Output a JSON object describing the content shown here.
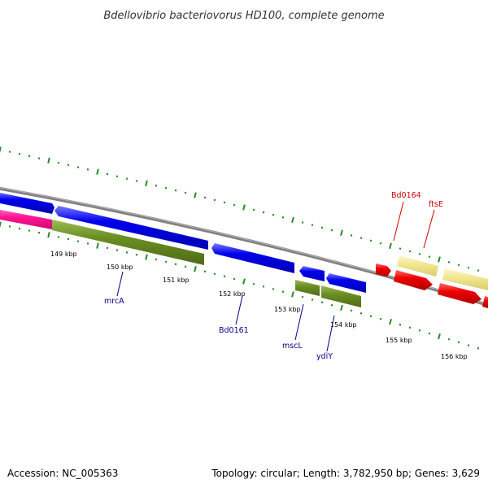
{
  "title": "Bdellovibrio bacteriovorus HD100, complete genome",
  "footer": {
    "accession": "Accession: NC_005363",
    "summary": "Topology: circular; Length: 3,782,950 bp; Genes: 3,629"
  },
  "colors": {
    "forward_cds": "#0000ee",
    "gc_skew": "#6b8e23",
    "pink_feature": "#ff1493",
    "red_feature": "#ee0000",
    "khaki_feature": "#f0e68c",
    "backbone": "#808080",
    "tick_marks": "#228b22",
    "label_blue": "#00008b",
    "label_red": "#cc0000"
  },
  "scale_ticks": [
    {
      "label": "149 kbp"
    },
    {
      "label": "150 kbp"
    },
    {
      "label": "151 kbp"
    },
    {
      "label": "152 kbp"
    },
    {
      "label": "153 kbp"
    },
    {
      "label": "154 kbp"
    },
    {
      "label": "155 kbp"
    },
    {
      "label": "156 kbp"
    }
  ],
  "gene_labels": [
    {
      "name": "mrcA"
    },
    {
      "name": "Bd0161"
    },
    {
      "name": "mscL"
    },
    {
      "name": "ydiY"
    },
    {
      "name": "Bd0164"
    },
    {
      "name": "ftsE"
    }
  ]
}
